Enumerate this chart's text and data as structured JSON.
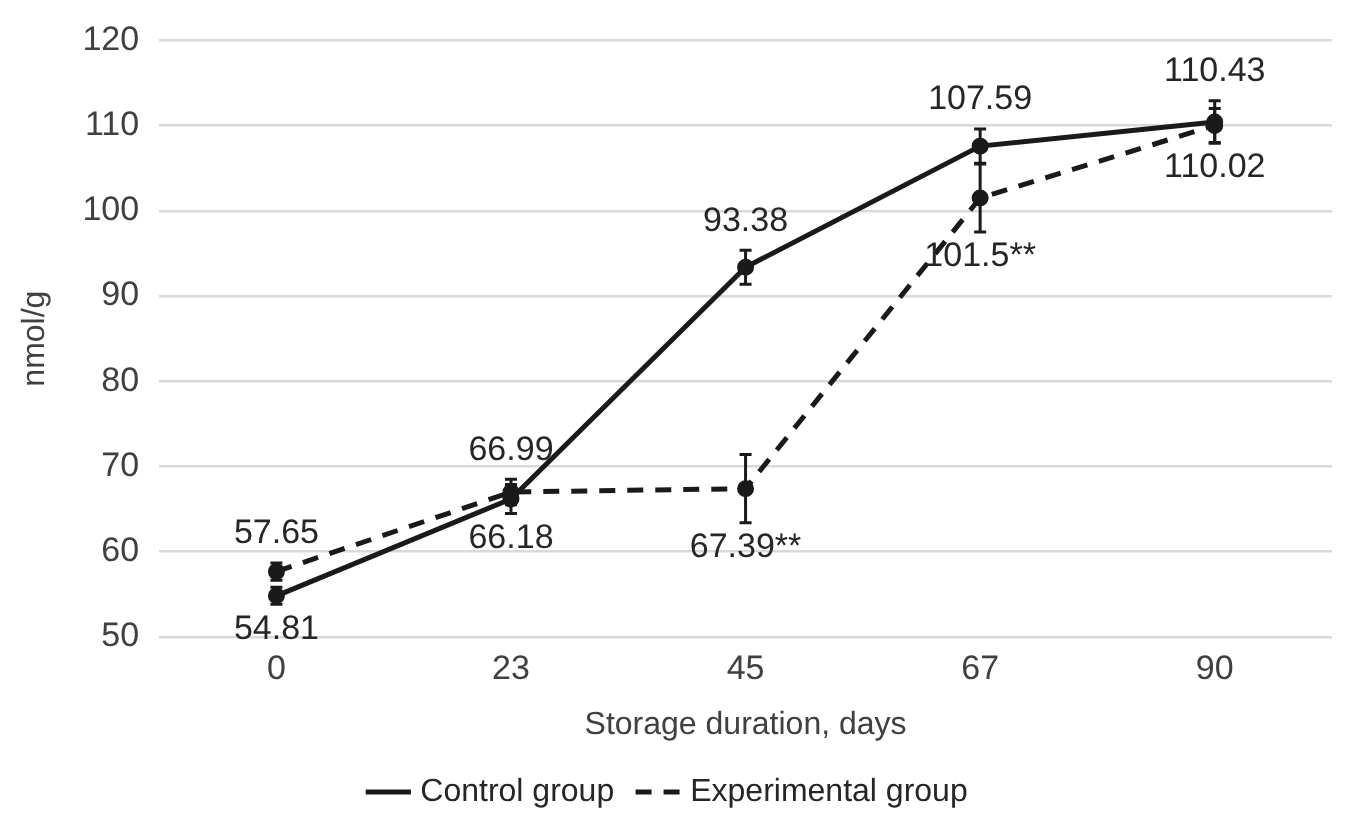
{
  "chart_data": {
    "type": "line",
    "xlabel": "Storage duration, days",
    "ylabel": "nmol/g",
    "categories": [
      "0",
      "23",
      "45",
      "67",
      "90"
    ],
    "ylim": [
      50,
      120
    ],
    "yticks": [
      50,
      60,
      70,
      80,
      90,
      100,
      110,
      120
    ],
    "grid": "y",
    "legend": "bottom",
    "marker": "circle",
    "series": [
      {
        "name": "Control group",
        "color": "#1a1a1a",
        "line_style": "solid",
        "values": [
          54.81,
          66.18,
          93.38,
          107.59,
          110.43
        ],
        "errors": [
          1,
          1.7,
          2,
          2,
          2.5
        ],
        "value_labels": [
          "54.81",
          "66.18",
          "93.38",
          "107.59",
          "110.43"
        ]
      },
      {
        "name": "Experimental group",
        "color": "#1a1a1a",
        "line_style": "dashed",
        "values": [
          57.65,
          66.99,
          67.39,
          101.5,
          110.02
        ],
        "errors": [
          1,
          1.5,
          4,
          4,
          2
        ],
        "value_labels": [
          "57.65",
          "66.99",
          "67.39**",
          "101.5**",
          "110.02"
        ]
      }
    ]
  }
}
